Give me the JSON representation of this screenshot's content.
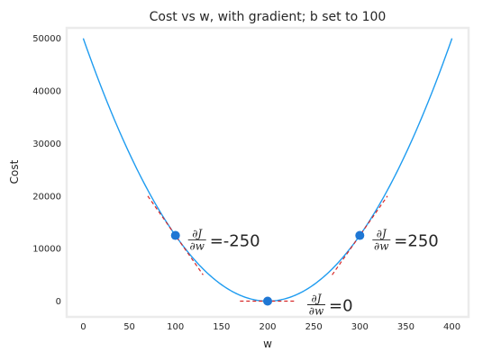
{
  "chart_data": {
    "type": "line",
    "title": "Cost vs w, with gradient; b set to 100",
    "xlabel": "w",
    "ylabel": "Cost",
    "xlim": [
      -18,
      418
    ],
    "ylim": [
      -3000,
      52000
    ],
    "xticks": [
      0,
      50,
      100,
      150,
      200,
      250,
      300,
      350,
      400
    ],
    "yticks": [
      0,
      10000,
      20000,
      30000,
      40000,
      50000
    ],
    "grid": false,
    "series": [
      {
        "kind": "curve",
        "formula": "1.25*(w-200)^2",
        "x_range": [
          0,
          400
        ],
        "color": "#1f9cf0"
      }
    ],
    "points": [
      {
        "x": 100,
        "y": 12500
      },
      {
        "x": 200,
        "y": 0
      },
      {
        "x": 300,
        "y": 12500
      }
    ],
    "gradient_lines": [
      {
        "x0": 70,
        "x1": 130,
        "slope": -250,
        "through": [
          100,
          12500
        ]
      },
      {
        "x0": 170,
        "x1": 230,
        "slope": 0,
        "through": [
          200,
          0
        ]
      },
      {
        "x0": 270,
        "x1": 330,
        "slope": 250,
        "through": [
          300,
          12500
        ]
      }
    ],
    "annotations": [
      {
        "text": "=-250",
        "x": 100,
        "y": 12500
      },
      {
        "text": "=0",
        "x": 200,
        "y": 0
      },
      {
        "text": "=250",
        "x": 300,
        "y": 12500
      }
    ],
    "fraction": {
      "numerator": "∂J",
      "denominator": "∂w"
    },
    "colors": {
      "curve": "#1f9cf0",
      "point": "#1f77d4",
      "gradient": "#d62728",
      "frame": "#ebebeb"
    }
  }
}
